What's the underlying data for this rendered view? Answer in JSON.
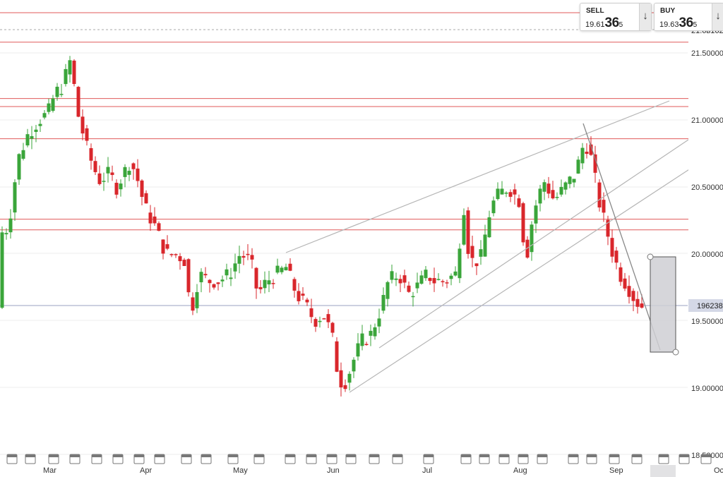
{
  "quote": {
    "sell": {
      "label": "SELL",
      "price_small": "19.61",
      "price_big": "36",
      "price_sup": "5",
      "arrow": "↓"
    },
    "buy": {
      "label": "BUY",
      "price_small": "19.63",
      "price_big": "36",
      "price_sup": "5",
      "arrow": "↓"
    }
  },
  "chart_data": {
    "type": "candlestick",
    "y_ticks": [
      "21.500000",
      "21.000000",
      "20.500000",
      "20.000000",
      "19.500000",
      "19.000000",
      "18.500000"
    ],
    "y_tick_values": [
      21.5,
      21.0,
      20.5,
      20.0,
      19.5,
      19.0,
      18.5
    ],
    "top_right_label": "21.6в162",
    "x_labels": [
      "Mar",
      "Apr",
      "May",
      "Jun",
      "Jul",
      "Aug",
      "Sep",
      "Oc"
    ],
    "current_price_label": "196238",
    "current_price": 19.6238,
    "ylim": [
      18.5,
      21.85
    ],
    "horizontal_levels": [
      21.8,
      21.58,
      21.16,
      21.1,
      20.86,
      20.26,
      20.18
    ],
    "colors": {
      "up": "#3aa53a",
      "down": "#d9262b",
      "level": "#e05a5a",
      "trend": "#aaaaaa"
    }
  },
  "icons": {
    "calendar": "calendar-icon",
    "event_markers": 31
  }
}
